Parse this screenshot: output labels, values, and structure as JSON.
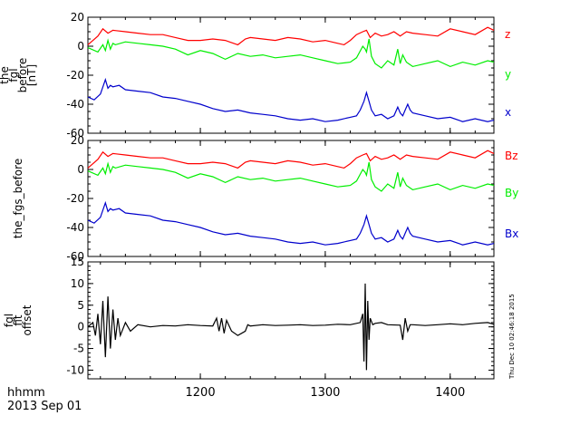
{
  "chart_data": [
    {
      "type": "line",
      "ylabel": [
        "the",
        "fgl",
        "before",
        "[nT]"
      ],
      "ylim": [
        -60,
        20
      ],
      "yticks": [
        20,
        0,
        -20,
        -40,
        -60
      ],
      "xlim": [
        1110,
        1435
      ],
      "series": [
        {
          "name": "z",
          "color": "#ff0000",
          "x": [
            1110,
            1118,
            1122,
            1126,
            1130,
            1140,
            1150,
            1160,
            1170,
            1180,
            1190,
            1200,
            1210,
            1220,
            1230,
            1236,
            1240,
            1250,
            1260,
            1270,
            1280,
            1290,
            1300,
            1310,
            1315,
            1320,
            1325,
            1330,
            1333,
            1336,
            1340,
            1345,
            1350,
            1355,
            1360,
            1365,
            1370,
            1380,
            1390,
            1400,
            1410,
            1420,
            1430,
            1435
          ],
          "y": [
            1,
            7,
            12,
            9,
            11,
            10,
            9,
            8,
            8,
            6,
            4,
            4,
            5,
            4,
            1,
            5,
            6,
            5,
            4,
            6,
            5,
            3,
            4,
            2,
            1,
            4,
            8,
            10,
            11,
            6,
            9,
            7,
            8,
            10,
            7,
            10,
            9,
            8,
            7,
            12,
            10,
            8,
            13,
            11
          ]
        },
        {
          "name": "y",
          "color": "#00ee00",
          "x": [
            1110,
            1118,
            1122,
            1124,
            1126,
            1128,
            1130,
            1132,
            1140,
            1150,
            1160,
            1170,
            1180,
            1190,
            1200,
            1210,
            1220,
            1230,
            1240,
            1250,
            1260,
            1270,
            1280,
            1290,
            1300,
            1310,
            1320,
            1325,
            1330,
            1332,
            1333,
            1335,
            1337,
            1340,
            1345,
            1350,
            1355,
            1358,
            1360,
            1362,
            1365,
            1370,
            1380,
            1390,
            1400,
            1410,
            1420,
            1430,
            1435
          ],
          "y": [
            -1,
            -4,
            1,
            -3,
            4,
            -2,
            2,
            1,
            3,
            2,
            1,
            0,
            -2,
            -6,
            -3,
            -5,
            -9,
            -5,
            -7,
            -6,
            -8,
            -7,
            -6,
            -8,
            -10,
            -12,
            -11,
            -8,
            0,
            -2,
            -4,
            5,
            -7,
            -12,
            -15,
            -10,
            -13,
            -2,
            -12,
            -6,
            -11,
            -14,
            -12,
            -10,
            -14,
            -11,
            -13,
            -10,
            -11
          ]
        },
        {
          "name": "x",
          "color": "#0000cc",
          "x": [
            1110,
            1115,
            1120,
            1124,
            1126,
            1128,
            1130,
            1135,
            1140,
            1150,
            1160,
            1170,
            1180,
            1190,
            1200,
            1210,
            1220,
            1230,
            1240,
            1250,
            1260,
            1270,
            1280,
            1290,
            1300,
            1310,
            1320,
            1325,
            1328,
            1331,
            1333,
            1335,
            1337,
            1340,
            1345,
            1350,
            1355,
            1358,
            1360,
            1362,
            1364,
            1366,
            1368,
            1370,
            1380,
            1390,
            1400,
            1410,
            1420,
            1430,
            1435
          ],
          "y": [
            -35,
            -37,
            -33,
            -23,
            -29,
            -27,
            -28,
            -27,
            -30,
            -31,
            -32,
            -35,
            -36,
            -38,
            -40,
            -43,
            -45,
            -44,
            -46,
            -47,
            -48,
            -50,
            -51,
            -50,
            -52,
            -51,
            -49,
            -48,
            -44,
            -38,
            -32,
            -38,
            -44,
            -48,
            -47,
            -50,
            -48,
            -42,
            -46,
            -48,
            -44,
            -40,
            -44,
            -46,
            -48,
            -50,
            -49,
            -52,
            -50,
            -52,
            -51
          ]
        }
      ]
    },
    {
      "type": "line",
      "ylabel": [
        "the_fgs_before"
      ],
      "ylim": [
        -60,
        20
      ],
      "yticks": [
        20,
        0,
        -20,
        -40,
        -60
      ],
      "xlim": [
        1110,
        1435
      ],
      "series": [
        {
          "name": "Bz",
          "color": "#ff0000",
          "x": [
            1110,
            1118,
            1122,
            1126,
            1130,
            1140,
            1150,
            1160,
            1170,
            1180,
            1190,
            1200,
            1210,
            1220,
            1230,
            1236,
            1240,
            1250,
            1260,
            1270,
            1280,
            1290,
            1300,
            1310,
            1315,
            1320,
            1325,
            1330,
            1333,
            1336,
            1340,
            1345,
            1350,
            1355,
            1360,
            1365,
            1370,
            1380,
            1390,
            1400,
            1410,
            1420,
            1430,
            1435
          ],
          "y": [
            1,
            7,
            12,
            9,
            11,
            10,
            9,
            8,
            8,
            6,
            4,
            4,
            5,
            4,
            1,
            5,
            6,
            5,
            4,
            6,
            5,
            3,
            4,
            2,
            1,
            4,
            8,
            10,
            11,
            6,
            9,
            7,
            8,
            10,
            7,
            10,
            9,
            8,
            7,
            12,
            10,
            8,
            13,
            11
          ]
        },
        {
          "name": "By",
          "color": "#00ee00",
          "x": [
            1110,
            1118,
            1122,
            1124,
            1126,
            1128,
            1130,
            1132,
            1140,
            1150,
            1160,
            1170,
            1180,
            1190,
            1200,
            1210,
            1220,
            1230,
            1240,
            1250,
            1260,
            1270,
            1280,
            1290,
            1300,
            1310,
            1320,
            1325,
            1330,
            1332,
            1333,
            1335,
            1337,
            1340,
            1345,
            1350,
            1355,
            1358,
            1360,
            1362,
            1365,
            1370,
            1380,
            1390,
            1400,
            1410,
            1420,
            1430,
            1435
          ],
          "y": [
            -1,
            -4,
            1,
            -3,
            4,
            -2,
            2,
            1,
            3,
            2,
            1,
            0,
            -2,
            -6,
            -3,
            -5,
            -9,
            -5,
            -7,
            -6,
            -8,
            -7,
            -6,
            -8,
            -10,
            -12,
            -11,
            -8,
            0,
            -2,
            -4,
            5,
            -7,
            -12,
            -15,
            -10,
            -13,
            -2,
            -12,
            -6,
            -11,
            -14,
            -12,
            -10,
            -14,
            -11,
            -13,
            -10,
            -11
          ]
        },
        {
          "name": "Bx",
          "color": "#0000cc",
          "x": [
            1110,
            1115,
            1120,
            1124,
            1126,
            1128,
            1130,
            1135,
            1140,
            1150,
            1160,
            1170,
            1180,
            1190,
            1200,
            1210,
            1220,
            1230,
            1240,
            1250,
            1260,
            1270,
            1280,
            1290,
            1300,
            1310,
            1320,
            1325,
            1328,
            1331,
            1333,
            1335,
            1337,
            1340,
            1345,
            1350,
            1355,
            1358,
            1360,
            1362,
            1364,
            1366,
            1368,
            1370,
            1380,
            1390,
            1400,
            1410,
            1420,
            1430,
            1435
          ],
          "y": [
            -35,
            -37,
            -33,
            -23,
            -29,
            -27,
            -28,
            -27,
            -30,
            -31,
            -32,
            -35,
            -36,
            -38,
            -40,
            -43,
            -45,
            -44,
            -46,
            -47,
            -48,
            -50,
            -51,
            -50,
            -52,
            -51,
            -49,
            -48,
            -44,
            -38,
            -32,
            -38,
            -44,
            -48,
            -47,
            -50,
            -48,
            -42,
            -46,
            -48,
            -44,
            -40,
            -44,
            -46,
            -48,
            -50,
            -49,
            -52,
            -50,
            -52,
            -51
          ]
        }
      ]
    },
    {
      "type": "line",
      "ylabel": [
        "fgl",
        "fit",
        "offset"
      ],
      "ylim": [
        -12,
        15
      ],
      "yticks": [
        15,
        10,
        5,
        0,
        -5,
        -10
      ],
      "xlim": [
        1110,
        1435
      ],
      "xticks": [
        1200,
        1300,
        1400
      ],
      "series": [
        {
          "color": "#000000",
          "x": [
            1110,
            1114,
            1116,
            1118,
            1120,
            1122,
            1124,
            1126,
            1128,
            1130,
            1132,
            1134,
            1136,
            1140,
            1144,
            1150,
            1160,
            1170,
            1180,
            1190,
            1200,
            1210,
            1213,
            1215,
            1217,
            1219,
            1221,
            1225,
            1230,
            1236,
            1238,
            1240,
            1250,
            1260,
            1270,
            1280,
            1290,
            1300,
            1310,
            1320,
            1328,
            1330,
            1331,
            1332,
            1333,
            1334,
            1335,
            1336,
            1338,
            1340,
            1345,
            1350,
            1360,
            1362,
            1364,
            1366,
            1368,
            1370,
            1380,
            1390,
            1400,
            1410,
            1420,
            1430,
            1435
          ],
          "y": [
            0,
            1,
            -2,
            3,
            -4,
            6,
            -7,
            7,
            -5,
            4,
            -3,
            2,
            -2,
            1,
            -1,
            0.5,
            0,
            0.3,
            0.2,
            0.5,
            0.3,
            0.2,
            2,
            -1,
            2,
            -1.5,
            1.5,
            -1,
            -2,
            -1,
            0.5,
            0.2,
            0.5,
            0.3,
            0.4,
            0.5,
            0.3,
            0.4,
            0.6,
            0.5,
            1,
            3,
            -8,
            10,
            -10,
            6,
            -3,
            2,
            0.5,
            0.8,
            1,
            0.5,
            0.4,
            -3,
            2,
            -1,
            0.5,
            0.5,
            0.3,
            0.5,
            0.7,
            0.5,
            0.8,
            1,
            0.6
          ]
        }
      ]
    }
  ],
  "x_axis_label": [
    "hhmm",
    "2013 Sep 01"
  ],
  "timestamp": "Thu Dec 10 02:46:18 2015"
}
